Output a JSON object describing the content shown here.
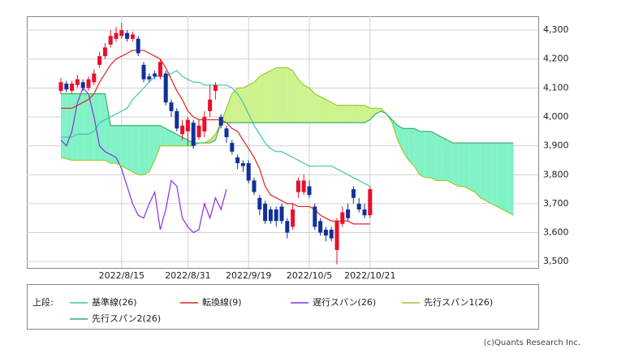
{
  "chart_data": {
    "type": "ichimoku",
    "categories": [
      null,
      null,
      null,
      null,
      null,
      null,
      null,
      null,
      null,
      null,
      null,
      "2022/8/15",
      null,
      null,
      null,
      null,
      null,
      null,
      null,
      null,
      null,
      null,
      null,
      "2022/8/31",
      null,
      null,
      null,
      null,
      null,
      null,
      null,
      null,
      null,
      null,
      "2022/9/19",
      null,
      null,
      null,
      null,
      null,
      null,
      null,
      null,
      null,
      null,
      "2022/10/5",
      null,
      null,
      null,
      null,
      null,
      null,
      null,
      null,
      null,
      null,
      "2022/10/21",
      null,
      null,
      null,
      null,
      null,
      null,
      null,
      null,
      null,
      null,
      null,
      null,
      null,
      null,
      null,
      null,
      null,
      null,
      null,
      null,
      null,
      null,
      null,
      null,
      null,
      null
    ],
    "open": [
      4090,
      4115,
      4090,
      4110,
      4120,
      4100,
      4120,
      4180,
      4210,
      4250,
      4270,
      4280,
      4290,
      4270,
      4270,
      4180,
      4140,
      4150,
      4140,
      4150,
      4050,
      4020,
      3940,
      3950,
      3980,
      3930,
      3950,
      4020,
      4090,
      4000,
      3960,
      3910,
      3860,
      3840,
      3840,
      3780,
      3720,
      3700,
      3680,
      3680,
      3690,
      3640,
      3620,
      3740,
      3740,
      3760,
      3690,
      3640,
      3610,
      3610,
      3540,
      3630,
      3680,
      3750,
      3700,
      3680,
      3660,
      null,
      null,
      null,
      null,
      null,
      null,
      null,
      null,
      null,
      null,
      null,
      null,
      null,
      null,
      null,
      null,
      null,
      null,
      null,
      null,
      null,
      null,
      null,
      null,
      null,
      null
    ],
    "high": [
      4135,
      4125,
      4125,
      4145,
      4130,
      4140,
      4165,
      4225,
      4255,
      4300,
      4310,
      4325,
      4300,
      4295,
      4280,
      4190,
      4150,
      4160,
      4200,
      4160,
      4060,
      4030,
      3990,
      4000,
      3990,
      3990,
      4020,
      4110,
      4120,
      4010,
      3970,
      3920,
      3870,
      3850,
      3850,
      3790,
      3730,
      3710,
      3690,
      3690,
      3700,
      3650,
      3700,
      3790,
      3800,
      3780,
      3700,
      3650,
      3620,
      3620,
      3650,
      3690,
      3700,
      3760,
      3720,
      3700,
      3760,
      null,
      null,
      null,
      null,
      null,
      null,
      null,
      null,
      null,
      null,
      null,
      null,
      null,
      null,
      null,
      null,
      null,
      null,
      null,
      null,
      null,
      null,
      null,
      null,
      null,
      null
    ],
    "low": [
      4080,
      4085,
      4080,
      4100,
      4090,
      4090,
      4110,
      4170,
      4200,
      4240,
      4260,
      4270,
      4260,
      4260,
      4210,
      4120,
      4120,
      4130,
      4130,
      4040,
      4000,
      3950,
      3920,
      3900,
      3890,
      3920,
      3930,
      4000,
      4060,
      3960,
      3910,
      3870,
      3820,
      3810,
      3770,
      3730,
      3660,
      3630,
      3630,
      3620,
      3630,
      3580,
      3610,
      3720,
      3730,
      3720,
      3610,
      3590,
      3570,
      3570,
      3490,
      3620,
      3640,
      3700,
      3670,
      3650,
      3650,
      null,
      null,
      null,
      null,
      null,
      null,
      null,
      null,
      null,
      null,
      null,
      null,
      null,
      null,
      null,
      null,
      null,
      null,
      null,
      null,
      null,
      null,
      null,
      null,
      null,
      null
    ],
    "close": [
      4120,
      4095,
      4115,
      4130,
      4100,
      4130,
      4150,
      4210,
      4240,
      4280,
      4290,
      4300,
      4270,
      4285,
      4220,
      4130,
      4130,
      4140,
      4190,
      4050,
      4020,
      3960,
      3970,
      3990,
      3900,
      3970,
      4000,
      4060,
      4110,
      3970,
      3930,
      3880,
      3840,
      3830,
      3780,
      3740,
      3680,
      3640,
      3640,
      3640,
      3640,
      3600,
      3680,
      3780,
      3780,
      3730,
      3620,
      3600,
      3590,
      3580,
      3640,
      3670,
      3650,
      3720,
      3680,
      3660,
      3750,
      null,
      null,
      null,
      null,
      null,
      null,
      null,
      null,
      null,
      null,
      null,
      null,
      null,
      null,
      null,
      null,
      null,
      null,
      null,
      null,
      null,
      null,
      null,
      null,
      null,
      null
    ],
    "up_color": "#e8102a",
    "down_color": "#10309a",
    "series": [
      {
        "name": "基準線(26)",
        "color": "#40c4b4",
        "values": [
          3930,
          3930,
          3930,
          3940,
          3940,
          3940,
          3950,
          3980,
          3990,
          4000,
          4010,
          4020,
          4030,
          4060,
          4080,
          4100,
          4120,
          4140,
          4140,
          4140,
          4150,
          4160,
          4140,
          4130,
          4120,
          4120,
          4110,
          4110,
          4110,
          4110,
          4110,
          4100,
          4080,
          4050,
          4010,
          3970,
          3940,
          3910,
          3890,
          3880,
          3880,
          3870,
          3860,
          3850,
          3840,
          3830,
          3830,
          3830,
          3830,
          3830,
          3820,
          3810,
          3800,
          3790,
          3780,
          3770,
          3760,
          null,
          null,
          null,
          null,
          null,
          null,
          null,
          null,
          null,
          null,
          null,
          null,
          null,
          null,
          null,
          null,
          null,
          null,
          null,
          null,
          null,
          null,
          null,
          null,
          null,
          null
        ]
      },
      {
        "name": "転換線(9)",
        "color": "#e82020",
        "values": [
          4030,
          4030,
          4030,
          4040,
          4050,
          4060,
          4080,
          4120,
          4150,
          4180,
          4200,
          4210,
          4220,
          4230,
          4230,
          4230,
          4220,
          4210,
          4200,
          4170,
          4130,
          4090,
          4060,
          4020,
          4000,
          3990,
          3990,
          3990,
          3990,
          3990,
          3980,
          3960,
          3950,
          3920,
          3890,
          3860,
          3820,
          3760,
          3730,
          3720,
          3710,
          3700,
          3700,
          3690,
          3690,
          3690,
          3680,
          3660,
          3650,
          3640,
          3640,
          3640,
          3640,
          3630,
          3630,
          3630,
          3630,
          null,
          null,
          null,
          null,
          null,
          null,
          null,
          null,
          null,
          null,
          null,
          null,
          null,
          null,
          null,
          null,
          null,
          null,
          null,
          null,
          null,
          null,
          null,
          null,
          null,
          null
        ]
      },
      {
        "name": "遅行スパン(26)",
        "color": "#8a2ee0",
        "values": [
          3920,
          3900,
          3950,
          4050,
          4100,
          4080,
          4000,
          3900,
          3880,
          3870,
          3860,
          3820,
          3760,
          3700,
          3660,
          3650,
          3700,
          3740,
          3610,
          3680,
          3780,
          3760,
          3650,
          3620,
          3600,
          3610,
          3700,
          3650,
          3720,
          3680,
          3750,
          null,
          null,
          null,
          null,
          null,
          null,
          null,
          null,
          null,
          null,
          null,
          null,
          null,
          null,
          null,
          null,
          null,
          null,
          null,
          null,
          null,
          null,
          null,
          null,
          null,
          null,
          null,
          null,
          null,
          null,
          null,
          null,
          null,
          null,
          null,
          null,
          null,
          null,
          null,
          null,
          null,
          null,
          null,
          null,
          null,
          null,
          null,
          null,
          null,
          null,
          null,
          null
        ]
      },
      {
        "name": "先行スパン1(26)",
        "color": "#9ccc2c",
        "values": [
          3860,
          3855,
          3850,
          3850,
          3850,
          3850,
          3850,
          3850,
          3850,
          3840,
          3840,
          3830,
          3820,
          3810,
          3800,
          3800,
          3810,
          3850,
          3900,
          3900,
          3900,
          3900,
          3900,
          3900,
          3900,
          3910,
          3910,
          3920,
          3940,
          3980,
          4030,
          4080,
          4100,
          4100,
          4110,
          4120,
          4140,
          4150,
          4160,
          4170,
          4170,
          4170,
          4160,
          4130,
          4110,
          4100,
          4080,
          4070,
          4060,
          4050,
          4040,
          4040,
          4040,
          4040,
          4040,
          4040,
          4030,
          4030,
          4030,
          4010,
          3980,
          3920,
          3880,
          3850,
          3830,
          3800,
          3790,
          3790,
          3780,
          3780,
          3780,
          3770,
          3760,
          3760,
          3750,
          3740,
          3720,
          3710,
          3700,
          3690,
          3680,
          3670,
          3660
        ]
      },
      {
        "name": "先行スパン2(26)",
        "color": "#3cae6c",
        "values": [
          4080,
          4080,
          4080,
          4080,
          4080,
          4080,
          4080,
          4080,
          4080,
          3970,
          3970,
          3970,
          3970,
          3970,
          3970,
          3970,
          3970,
          3970,
          3970,
          3960,
          3950,
          3940,
          3930,
          3920,
          3910,
          3910,
          3910,
          3910,
          3920,
          3980,
          3980,
          3980,
          3980,
          3980,
          3980,
          3980,
          3980,
          3980,
          3980,
          3980,
          3980,
          3980,
          3980,
          3980,
          3980,
          3980,
          3980,
          3980,
          3980,
          3980,
          3980,
          3980,
          3980,
          3980,
          3980,
          3980,
          3990,
          4010,
          4020,
          4010,
          3990,
          3970,
          3960,
          3960,
          3960,
          3950,
          3950,
          3950,
          3940,
          3930,
          3920,
          3910,
          3910,
          3910,
          3910,
          3910,
          3910,
          3910,
          3910,
          3910,
          3910,
          3910,
          3910
        ]
      }
    ],
    "cloud_colors": [
      "#cdf28e",
      "#80f2c6"
    ],
    "ylim": [
      3478,
      4348
    ],
    "yticks": [
      {
        "value": 3500,
        "label": "3,500"
      },
      {
        "value": 3600,
        "label": "3,600"
      },
      {
        "value": 3700,
        "label": "3,700"
      },
      {
        "value": 3800,
        "label": "3,800"
      },
      {
        "value": 3900,
        "label": "3,900"
      },
      {
        "value": 4000,
        "label": "4,000"
      },
      {
        "value": 4100,
        "label": "4,100"
      },
      {
        "value": 4200,
        "label": "4,200"
      },
      {
        "value": 4300,
        "label": "4,300"
      }
    ],
    "grid": true,
    "legend_title": "上段:",
    "copyright": "(c)Quants Research Inc."
  }
}
